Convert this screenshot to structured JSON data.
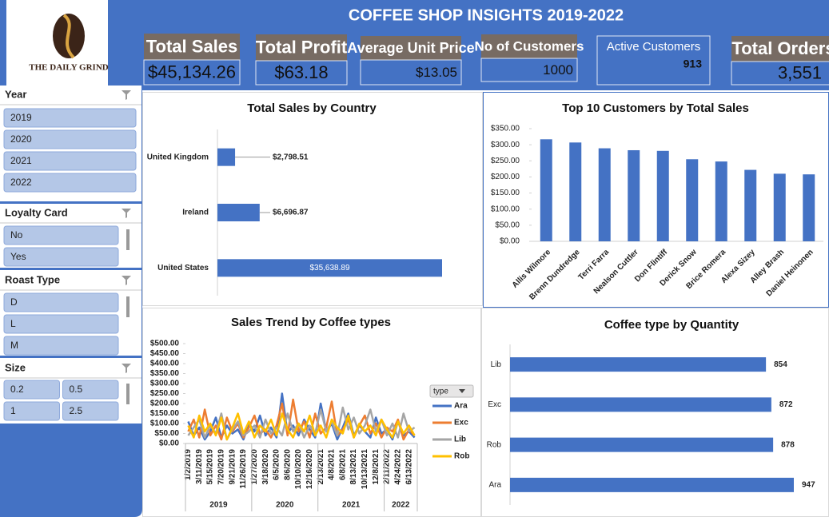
{
  "logo": {
    "text": "THE DAILY GRIND"
  },
  "header": {
    "title": "COFFEE SHOP INSIGHTS 2019-2022"
  },
  "kpis": [
    {
      "label": "Total Sales",
      "value": "$45,134.26"
    },
    {
      "label": "Total Profit",
      "value": "$63.18"
    },
    {
      "label": "Average Unit Price",
      "value": "$13.05"
    },
    {
      "label": "No of Customers",
      "value": "1000"
    },
    {
      "label": "Active Customers",
      "value": "913"
    },
    {
      "label": "Total Orders",
      "value": "3,551"
    }
  ],
  "slicers": [
    {
      "title": "Year",
      "items": [
        "2019",
        "2020",
        "2021",
        "2022"
      ]
    },
    {
      "title": "Loyalty Card",
      "items": [
        "No",
        "Yes"
      ]
    },
    {
      "title": "Roast Type",
      "items": [
        "D",
        "L",
        "M"
      ]
    },
    {
      "title": "Size",
      "items": [
        "0.2",
        "0.5",
        "1",
        "2.5"
      ]
    }
  ],
  "chart_data": [
    {
      "type": "bar",
      "orientation": "horizontal",
      "title": "Total Sales by Country",
      "categories": [
        "United Kingdom",
        "Ireland",
        "United States"
      ],
      "values": [
        2798.51,
        6696.87,
        35638.89
      ],
      "value_labels": [
        "$2,798.51",
        "$6,696.87",
        "$35,638.89"
      ],
      "color": "#4472c4"
    },
    {
      "type": "bar",
      "orientation": "vertical",
      "title": "Top 10 Customers by Total Sales",
      "categories": [
        "Allis Wilmore",
        "Brenn Dundredge",
        "Terri Farra",
        "Nealson Cuttler",
        "Don Flintiff",
        "Derick Snow",
        "Brice Romera",
        "Alexa Sizey",
        "Alley Brash",
        "Daniel Heinonen"
      ],
      "values": [
        317,
        307,
        289,
        283,
        281,
        255,
        248,
        222,
        210,
        208
      ],
      "color": "#4472c4",
      "ylim": [
        0,
        350
      ],
      "yticks": [
        {
          "value": 0,
          "label": "$0.00"
        },
        {
          "value": 50,
          "label": "$50.00"
        },
        {
          "value": 100,
          "label": "$100.00"
        },
        {
          "value": 150,
          "label": "$150.00"
        },
        {
          "value": 200,
          "label": "$200.00"
        },
        {
          "value": 250,
          "label": "$250.00"
        },
        {
          "value": 300,
          "label": "$300.00"
        },
        {
          "value": 350,
          "label": "$350.00"
        }
      ]
    },
    {
      "type": "line",
      "title": "Sales Trend by Coffee types",
      "categories": [
        "1/2/2019",
        null,
        "3/11/2019",
        null,
        "5/15/2019",
        null,
        "7/20/2019",
        null,
        "9/21/2019",
        null,
        "11/26/2019",
        null,
        "1/27/2020",
        null,
        "3/18/2020",
        null,
        "6/5/2020",
        null,
        "8/6/2020",
        null,
        "10/10/2020",
        null,
        "12/16/2020",
        null,
        "2/13/2021",
        null,
        "4/8/2021",
        null,
        "6/8/2021",
        null,
        "8/13/2021",
        null,
        "10/13/2021",
        null,
        "12/8/2021",
        null,
        "2/11/2022",
        null,
        "4/24/2022",
        null,
        "6/13/2022",
        null
      ],
      "x_groups": [
        "2019",
        "2020",
        "2021",
        "2022"
      ],
      "legend_title": "type",
      "legend": "right",
      "ylim": [
        0,
        500
      ],
      "yticks": [
        {
          "value": 0,
          "label": "$0.00"
        },
        {
          "value": 50,
          "label": "$50.00"
        },
        {
          "value": 100,
          "label": "$100.00"
        },
        {
          "value": 150,
          "label": "$150.00"
        },
        {
          "value": 200,
          "label": "$200.00"
        },
        {
          "value": 250,
          "label": "$250.00"
        },
        {
          "value": 300,
          "label": "$300.00"
        },
        {
          "value": 350,
          "label": "$350.00"
        },
        {
          "value": 400,
          "label": "$400.00"
        },
        {
          "value": 450,
          "label": "$450.00"
        },
        {
          "value": 500,
          "label": "$500.00"
        }
      ],
      "series": [
        {
          "name": "Ara",
          "color": "#4472c4",
          "values": [
            110,
            40,
            80,
            20,
            60,
            130,
            30,
            90,
            50,
            70,
            20,
            100,
            60,
            140,
            40,
            80,
            30,
            250,
            50,
            90,
            40,
            120,
            70,
            30,
            200,
            60,
            100,
            20,
            80,
            150,
            40,
            90,
            60,
            30,
            130,
            50,
            70,
            20,
            110,
            40,
            60,
            30
          ]
        },
        {
          "name": "Exc",
          "color": "#ed7d31",
          "values": [
            60,
            120,
            30,
            170,
            40,
            90,
            20,
            130,
            60,
            100,
            30,
            80,
            140,
            50,
            70,
            30,
            90,
            200,
            40,
            220,
            60,
            110,
            30,
            150,
            50,
            80,
            210,
            40,
            70,
            120,
            30,
            90,
            140,
            50,
            100,
            30,
            80,
            60,
            120,
            20,
            70,
            40
          ]
        },
        {
          "name": "Lib",
          "color": "#a5a5a5",
          "values": [
            40,
            80,
            120,
            30,
            90,
            50,
            150,
            20,
            70,
            110,
            40,
            60,
            90,
            30,
            120,
            50,
            80,
            40,
            150,
            60,
            100,
            30,
            90,
            50,
            170,
            60,
            110,
            40,
            180,
            70,
            130,
            50,
            90,
            170,
            60,
            120,
            40,
            100,
            30,
            150,
            60,
            80
          ]
        },
        {
          "name": "Rob",
          "color": "#ffc000",
          "values": [
            90,
            30,
            140,
            60,
            100,
            40,
            130,
            20,
            80,
            150,
            50,
            110,
            30,
            90,
            60,
            120,
            40,
            150,
            70,
            30,
            100,
            60,
            140,
            40,
            90,
            30,
            120,
            80,
            50,
            140,
            30,
            100,
            60,
            90,
            40,
            120,
            70,
            30,
            110,
            50,
            90,
            40
          ]
        }
      ]
    },
    {
      "type": "bar",
      "orientation": "horizontal",
      "title": "Coffee type by Quantity",
      "categories": [
        "Lib",
        "Exc",
        "Rob",
        "Ara"
      ],
      "values": [
        854,
        872,
        878,
        947
      ],
      "color": "#4472c4"
    }
  ]
}
